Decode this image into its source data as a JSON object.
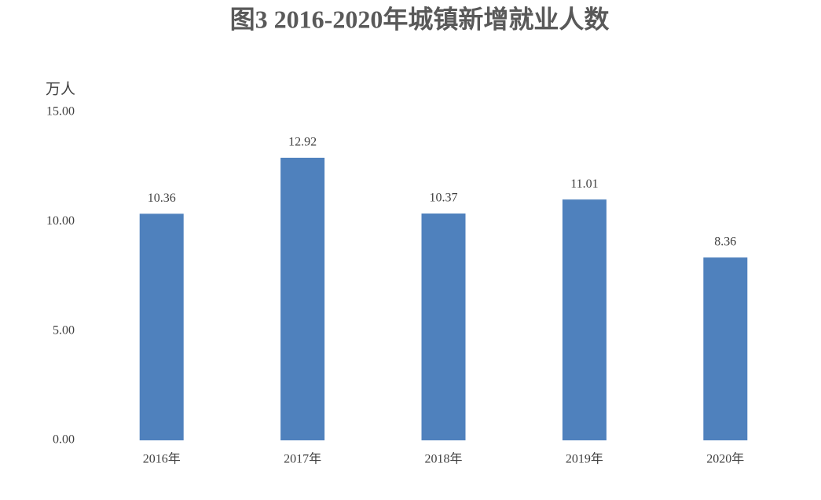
{
  "chart_data": {
    "type": "bar",
    "title": "图3  2016-2020年城镇新增就业人数",
    "y_label": "万人",
    "categories": [
      "2016年",
      "2017年",
      "2018年",
      "2019年",
      "2020年"
    ],
    "values": [
      10.36,
      12.92,
      10.37,
      11.01,
      8.36
    ],
    "value_labels": [
      "10.36",
      "12.92",
      "10.37",
      "11.01",
      "8.36"
    ],
    "color": "#4f81bd",
    "ylim": [
      0,
      15
    ],
    "yticks": [
      {
        "value": 0,
        "label": "0.00"
      },
      {
        "value": 5,
        "label": "5.00"
      },
      {
        "value": 10,
        "label": "10.00"
      },
      {
        "value": 15,
        "label": "15.00"
      }
    ],
    "grid": false
  }
}
